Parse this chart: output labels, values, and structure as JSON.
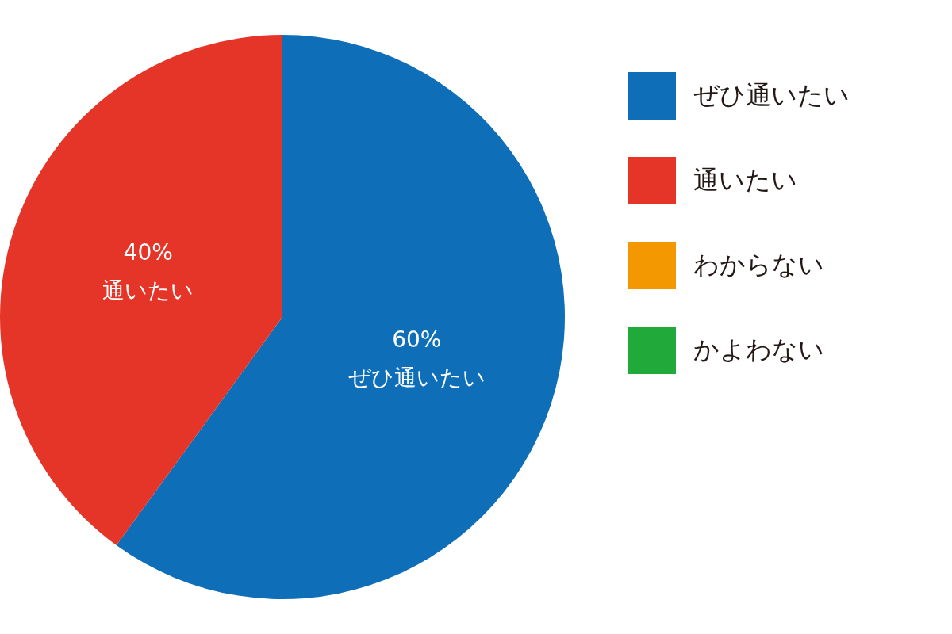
{
  "chart_data": {
    "type": "pie",
    "categories": [
      "ぜひ通いたい",
      "通いたい",
      "わからない",
      "かよわない"
    ],
    "values": [
      60,
      40,
      0,
      0
    ],
    "colors": [
      "#0e6eb8",
      "#e53528",
      "#f39800",
      "#21aa3a"
    ],
    "value_labels": [
      "60%",
      "40%",
      null,
      null
    ],
    "legend": "right"
  }
}
